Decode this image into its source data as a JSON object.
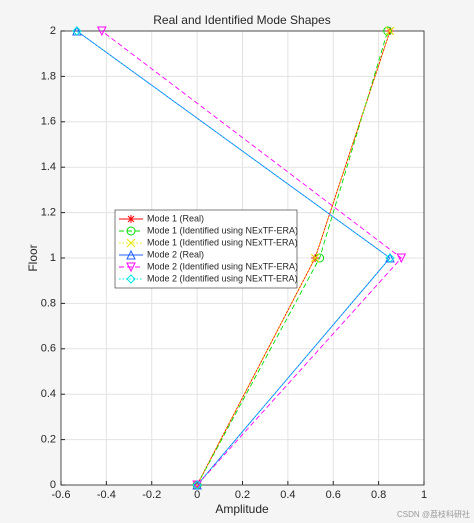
{
  "chart_data": {
    "type": "line",
    "title": "Real and Identified Mode Shapes",
    "x_label": "Amplitude",
    "y_label": "Floor",
    "xlim": [
      -0.6,
      1
    ],
    "xticks": [
      -0.6,
      -0.4,
      -0.2,
      0,
      0.2,
      0.4,
      0.6,
      0.8,
      1
    ],
    "ylim": [
      0,
      2
    ],
    "yticks": [
      0,
      0.2,
      0.4,
      0.6,
      0.8,
      1,
      1.2,
      1.4,
      1.6,
      1.8,
      2
    ],
    "grid": true,
    "legend": "center-left",
    "series": [
      {
        "name": "Mode 1 (Real)",
        "color": "#ff0000",
        "line_style": "solid",
        "marker": "star",
        "x": [
          0,
          0.52,
          0.85
        ],
        "y": [
          0,
          1,
          2
        ]
      },
      {
        "name": "Mode 1 (Identified using NExTF-ERA)",
        "color": "#00dd00",
        "line_style": "dashed",
        "marker": "circle",
        "x": [
          0,
          0.54,
          0.84
        ],
        "y": [
          0,
          1,
          2
        ]
      },
      {
        "name": "Mode 1 (Identified using NExTT-ERA)",
        "color": "#e6e600",
        "line_style": "dotted",
        "marker": "cross",
        "x": [
          0,
          0.52,
          0.85
        ],
        "y": [
          0,
          1,
          2
        ]
      },
      {
        "name": "Mode 2 (Real)",
        "color": "#1f5fff",
        "line_style": "solid",
        "marker": "triangle-up",
        "x": [
          0,
          0.85,
          -0.53
        ],
        "y": [
          0,
          1,
          2
        ]
      },
      {
        "name": "Mode 2 (Identified using NExTF-ERA)",
        "color": "#ff00ff",
        "line_style": "dashed",
        "marker": "triangle-down",
        "x": [
          0,
          0.9,
          -0.42
        ],
        "y": [
          0,
          1,
          2
        ]
      },
      {
        "name": "Mode 2 (Identified using NExTT-ERA)",
        "color": "#00e5e5",
        "line_style": "dotted",
        "marker": "diamond",
        "x": [
          0,
          0.85,
          -0.53
        ],
        "y": [
          0,
          1,
          2
        ]
      }
    ],
    "watermark": "CSDN @荔枝科研社"
  }
}
